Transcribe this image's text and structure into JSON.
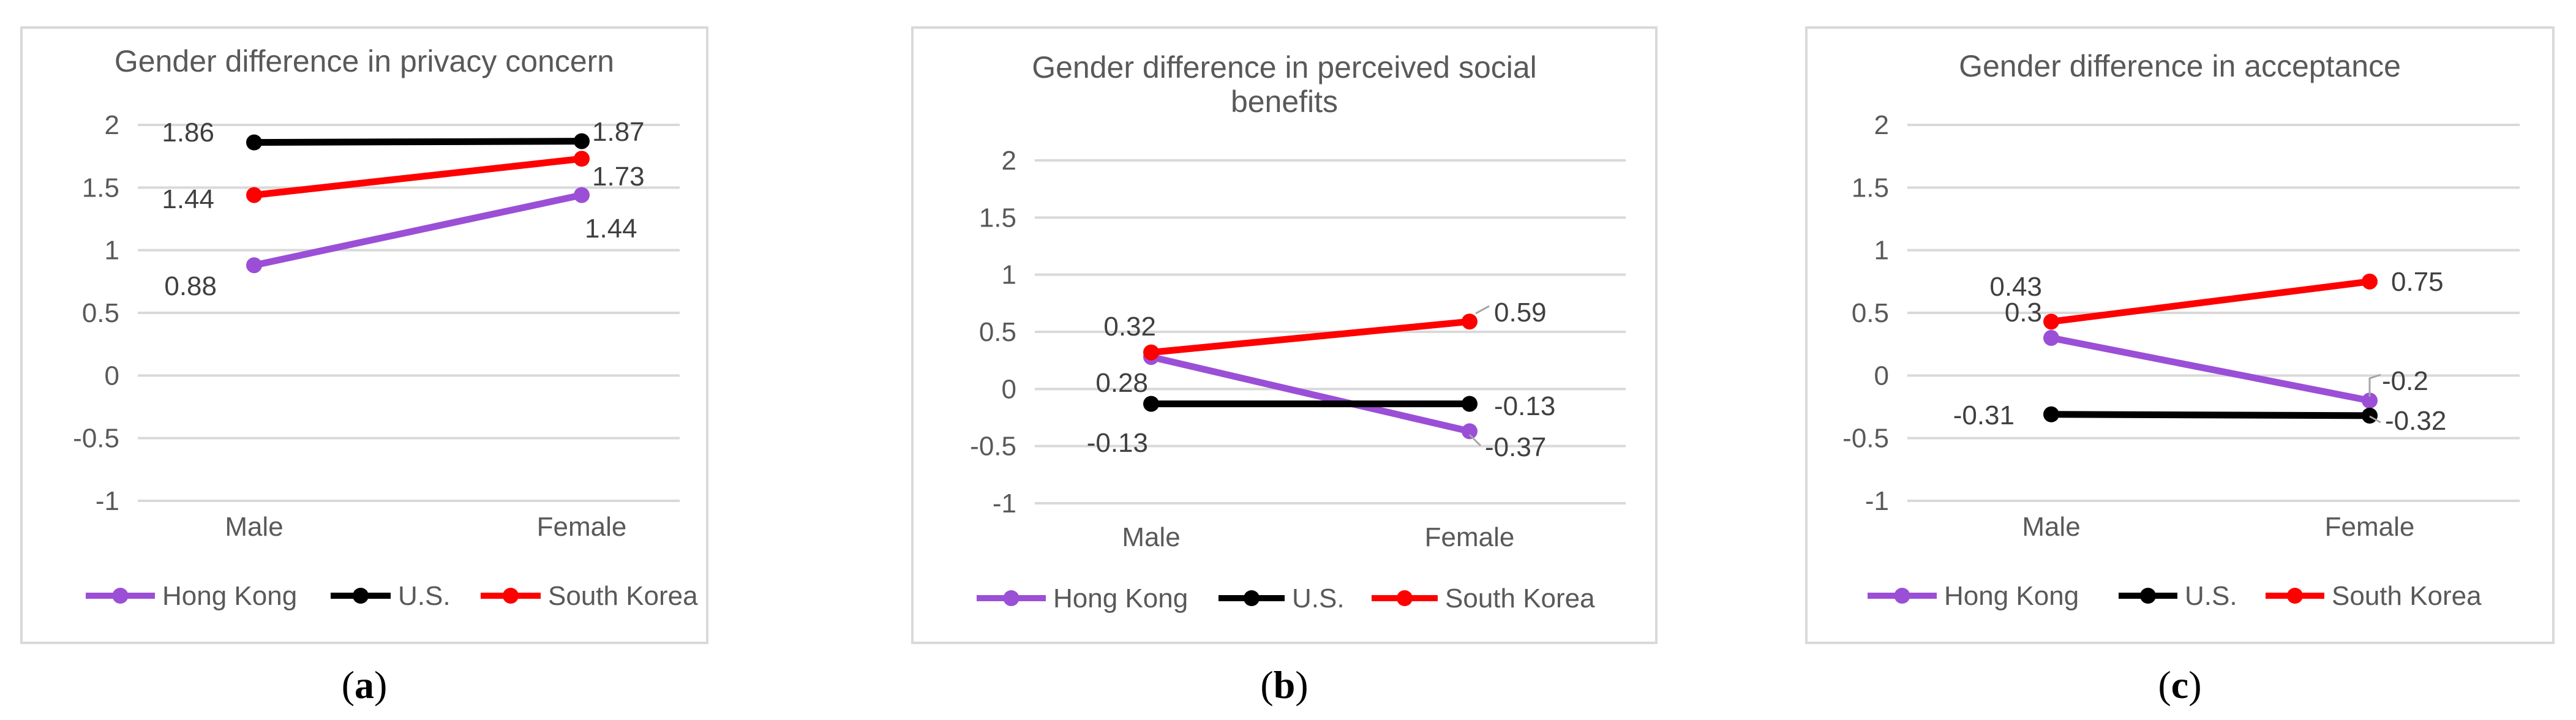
{
  "chart_data": [
    {
      "type": "line",
      "title": "Gender difference in privacy concern",
      "categories": [
        "Male",
        "Female"
      ],
      "ylim": [
        -1,
        2
      ],
      "yticks": [
        "2",
        "1.5",
        "1",
        "0.5",
        "0",
        "-0.5",
        "-1"
      ],
      "grid": true,
      "legend": "bottom",
      "caption": "a",
      "series": [
        {
          "name": "Hong Kong",
          "color": "#9b4fd6",
          "values": [
            0.88,
            1.44
          ],
          "labels": [
            "0.88",
            "1.44"
          ]
        },
        {
          "name": "U.S.",
          "color": "#000000",
          "values": [
            1.86,
            1.87
          ],
          "labels": [
            "1.86",
            "1.87"
          ]
        },
        {
          "name": "South Korea",
          "color": "#ff0000",
          "values": [
            1.44,
            1.73
          ],
          "labels": [
            "1.44",
            "1.73"
          ]
        }
      ]
    },
    {
      "type": "line",
      "title": "Gender difference in perceived social benefits",
      "title_lines": [
        "Gender difference in perceived social",
        "benefits"
      ],
      "categories": [
        "Male",
        "Female"
      ],
      "ylim": [
        -1,
        2
      ],
      "yticks": [
        "2",
        "1.5",
        "1",
        "0.5",
        "0",
        "-0.5",
        "-1"
      ],
      "grid": true,
      "legend": "bottom",
      "caption": "b",
      "series": [
        {
          "name": "Hong Kong",
          "color": "#9b4fd6",
          "values": [
            0.28,
            -0.37
          ],
          "labels": [
            "0.28",
            "-0.37"
          ]
        },
        {
          "name": "U.S.",
          "color": "#000000",
          "values": [
            -0.13,
            -0.13
          ],
          "labels": [
            "-0.13",
            "-0.13"
          ]
        },
        {
          "name": "South Korea",
          "color": "#ff0000",
          "values": [
            0.32,
            0.59
          ],
          "labels": [
            "0.32",
            "0.59"
          ]
        }
      ]
    },
    {
      "type": "line",
      "title": "Gender difference in acceptance",
      "categories": [
        "Male",
        "Female"
      ],
      "ylim": [
        -1,
        2
      ],
      "yticks": [
        "2",
        "1.5",
        "1",
        "0.5",
        "0",
        "-0.5",
        "-1"
      ],
      "grid": true,
      "legend": "bottom",
      "caption": "c",
      "series": [
        {
          "name": "Hong Kong",
          "color": "#9b4fd6",
          "values": [
            0.3,
            -0.2
          ],
          "labels": [
            "0.3",
            "-0.2"
          ]
        },
        {
          "name": "U.S.",
          "color": "#000000",
          "values": [
            -0.31,
            -0.32
          ],
          "labels": [
            "-0.31",
            "-0.32"
          ]
        },
        {
          "name": "South Korea",
          "color": "#ff0000",
          "values": [
            0.43,
            0.75
          ],
          "labels": [
            "0.43",
            "0.75"
          ]
        }
      ]
    }
  ]
}
